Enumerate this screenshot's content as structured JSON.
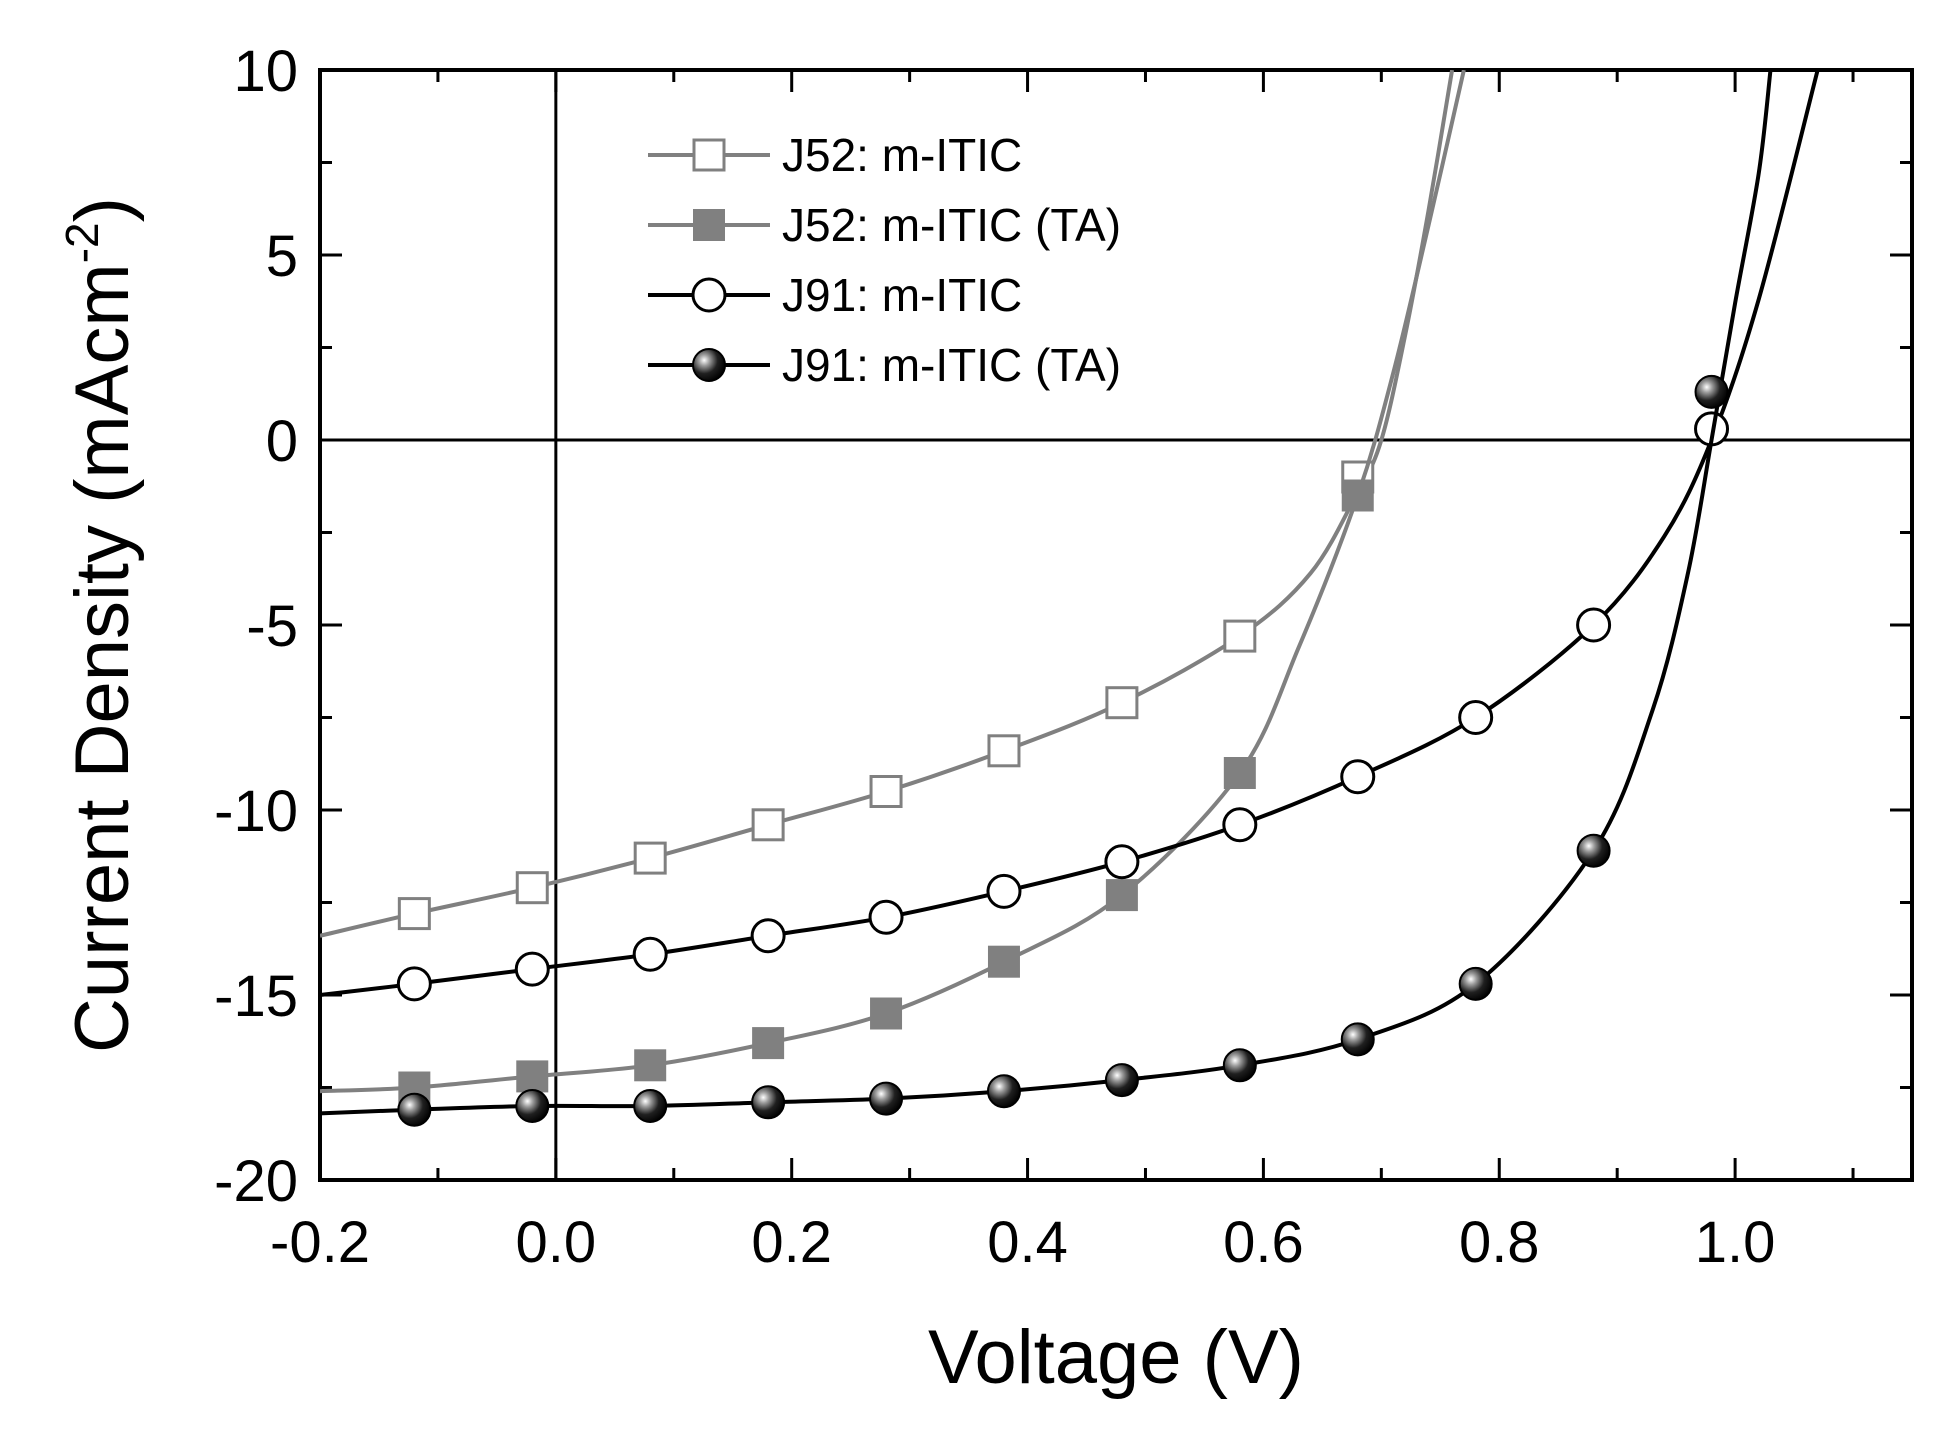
{
  "chart_data": {
    "type": "line",
    "title": "",
    "xlabel": "Voltage (V)",
    "ylabel_main": "Current Density (mAcm",
    "ylabel_sup": "-2",
    "ylabel_close": ")",
    "xlim": [
      -0.2,
      1.15
    ],
    "ylim": [
      -20,
      10
    ],
    "x_ticks": [
      -0.2,
      0.0,
      0.2,
      0.4,
      0.6,
      0.8,
      1.0
    ],
    "x_tick_labels": [
      "-0.2",
      "0.0",
      "0.2",
      "0.4",
      "0.6",
      "0.8",
      "1.0"
    ],
    "y_ticks": [
      10,
      5,
      0,
      -5,
      -10,
      -15,
      -20
    ],
    "y_tick_labels": [
      "10",
      "5",
      "0",
      "-5",
      "-10",
      "-15",
      "-20"
    ],
    "legend_position": "top-left",
    "reference_lines": {
      "x": 0,
      "y": 0
    },
    "series": [
      {
        "name": "J52: m-ITIC",
        "marker": "open-square",
        "color": "#808080",
        "curve": [
          [
            -0.2,
            -13.4
          ],
          [
            -0.12,
            -12.8
          ],
          [
            -0.02,
            -12.1
          ],
          [
            0.08,
            -11.3
          ],
          [
            0.18,
            -10.4
          ],
          [
            0.28,
            -9.5
          ],
          [
            0.38,
            -8.4
          ],
          [
            0.48,
            -7.1
          ],
          [
            0.58,
            -5.3
          ],
          [
            0.64,
            -3.6
          ],
          [
            0.68,
            -1.4
          ],
          [
            0.7,
            0
          ],
          [
            0.72,
            2.8
          ],
          [
            0.74,
            6.2
          ],
          [
            0.76,
            10
          ]
        ],
        "points": [
          [
            -0.12,
            -12.8
          ],
          [
            -0.02,
            -12.1
          ],
          [
            0.08,
            -11.3
          ],
          [
            0.18,
            -10.4
          ],
          [
            0.28,
            -9.5
          ],
          [
            0.38,
            -8.4
          ],
          [
            0.48,
            -7.1
          ],
          [
            0.58,
            -5.3
          ],
          [
            0.68,
            -1.0
          ]
        ]
      },
      {
        "name": "J52: m-ITIC (TA)",
        "marker": "filled-square",
        "color": "#808080",
        "curve": [
          [
            -0.2,
            -17.6
          ],
          [
            -0.12,
            -17.5
          ],
          [
            -0.02,
            -17.2
          ],
          [
            0.08,
            -16.9
          ],
          [
            0.18,
            -16.3
          ],
          [
            0.28,
            -15.5
          ],
          [
            0.38,
            -14.1
          ],
          [
            0.48,
            -12.3
          ],
          [
            0.58,
            -9.0
          ],
          [
            0.63,
            -5.6
          ],
          [
            0.68,
            -1.5
          ],
          [
            0.71,
            1.8
          ],
          [
            0.74,
            5.8
          ],
          [
            0.77,
            10
          ]
        ],
        "points": [
          [
            -0.12,
            -17.5
          ],
          [
            -0.02,
            -17.2
          ],
          [
            0.08,
            -16.9
          ],
          [
            0.18,
            -16.3
          ],
          [
            0.28,
            -15.5
          ],
          [
            0.38,
            -14.1
          ],
          [
            0.48,
            -12.3
          ],
          [
            0.58,
            -9.0
          ],
          [
            0.68,
            -1.5
          ]
        ]
      },
      {
        "name": "J91: m-ITIC",
        "marker": "open-circle",
        "color": "#000000",
        "curve": [
          [
            -0.2,
            -15.0
          ],
          [
            -0.12,
            -14.7
          ],
          [
            -0.02,
            -14.3
          ],
          [
            0.08,
            -13.9
          ],
          [
            0.18,
            -13.4
          ],
          [
            0.28,
            -12.9
          ],
          [
            0.38,
            -12.2
          ],
          [
            0.48,
            -11.4
          ],
          [
            0.58,
            -10.4
          ],
          [
            0.68,
            -9.1
          ],
          [
            0.78,
            -7.5
          ],
          [
            0.88,
            -5.0
          ],
          [
            0.94,
            -2.6
          ],
          [
            0.98,
            0
          ],
          [
            1.02,
            3.8
          ],
          [
            1.07,
            10
          ]
        ],
        "points": [
          [
            -0.12,
            -14.7
          ],
          [
            -0.02,
            -14.3
          ],
          [
            0.08,
            -13.9
          ],
          [
            0.18,
            -13.4
          ],
          [
            0.28,
            -12.9
          ],
          [
            0.38,
            -12.2
          ],
          [
            0.48,
            -11.4
          ],
          [
            0.58,
            -10.4
          ],
          [
            0.68,
            -9.1
          ],
          [
            0.78,
            -7.5
          ],
          [
            0.88,
            -5.0
          ],
          [
            0.98,
            0.3
          ]
        ]
      },
      {
        "name": "J91: m-ITIC (TA)",
        "marker": "filled-circle",
        "color": "#000000",
        "curve": [
          [
            -0.2,
            -18.2
          ],
          [
            -0.12,
            -18.1
          ],
          [
            -0.02,
            -18.0
          ],
          [
            0.08,
            -18.0
          ],
          [
            0.18,
            -17.9
          ],
          [
            0.28,
            -17.8
          ],
          [
            0.38,
            -17.6
          ],
          [
            0.48,
            -17.3
          ],
          [
            0.58,
            -16.9
          ],
          [
            0.68,
            -16.2
          ],
          [
            0.78,
            -14.7
          ],
          [
            0.88,
            -11.1
          ],
          [
            0.93,
            -7.3
          ],
          [
            0.96,
            -3.6
          ],
          [
            0.98,
            0
          ],
          [
            1.0,
            3.7
          ],
          [
            1.02,
            7.2
          ],
          [
            1.03,
            10
          ]
        ],
        "points": [
          [
            -0.12,
            -18.1
          ],
          [
            -0.02,
            -18.0
          ],
          [
            0.08,
            -18.0
          ],
          [
            0.18,
            -17.9
          ],
          [
            0.28,
            -17.8
          ],
          [
            0.38,
            -17.6
          ],
          [
            0.48,
            -17.3
          ],
          [
            0.58,
            -16.9
          ],
          [
            0.68,
            -16.2
          ],
          [
            0.78,
            -14.7
          ],
          [
            0.88,
            -11.1
          ],
          [
            0.98,
            1.3
          ]
        ]
      }
    ]
  }
}
